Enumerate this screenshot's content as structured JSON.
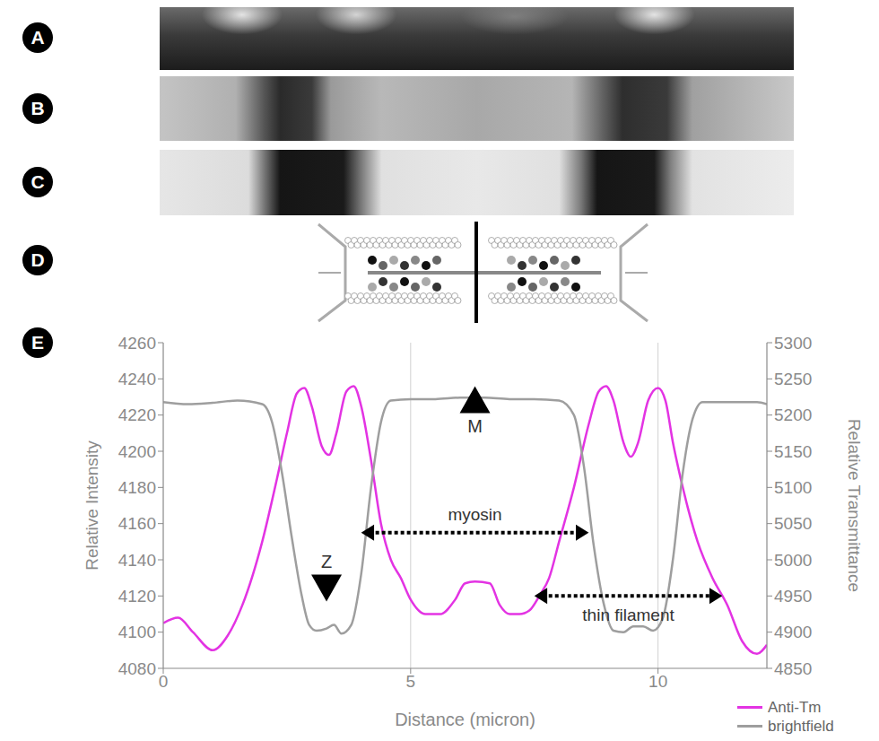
{
  "panel_labels": [
    "A",
    "B",
    "C",
    "D",
    "E"
  ],
  "chart_data": {
    "type": "line",
    "x_label": "Distance (micron)",
    "y_label": "Relative Intensity",
    "y2_label": "Relative Transmittance",
    "xlim": [
      0,
      12.2
    ],
    "xticks": [
      0,
      5,
      10
    ],
    "ylim": [
      4080,
      4260
    ],
    "yticks": [
      4080,
      4100,
      4120,
      4140,
      4160,
      4180,
      4200,
      4220,
      4240,
      4260
    ],
    "y2lim": [
      4850,
      5300
    ],
    "y2ticks": [
      4850,
      4900,
      4950,
      5000,
      5050,
      5100,
      5150,
      5200,
      5250,
      5300
    ],
    "grid": "x",
    "legend": "lower right",
    "series": [
      {
        "name": "Anti-Tm",
        "color": "#e333e3",
        "axis": "y",
        "x": [
          0,
          0.3,
          0.6,
          1.0,
          1.3,
          1.6,
          2.0,
          2.3,
          2.5,
          2.7,
          2.85,
          3.0,
          3.2,
          3.35,
          3.5,
          3.7,
          3.85,
          4.0,
          4.2,
          4.4,
          4.6,
          4.8,
          5.0,
          5.3,
          5.6,
          5.9,
          6.1,
          6.3,
          6.6,
          6.8,
          7.0,
          7.2,
          7.4,
          7.6,
          7.8,
          8.0,
          8.3,
          8.6,
          8.8,
          8.95,
          9.1,
          9.3,
          9.45,
          9.6,
          9.8,
          10.0,
          10.15,
          10.3,
          10.5,
          10.8,
          11.1,
          11.4,
          11.7,
          12.0,
          12.2
        ],
        "values": [
          4105,
          4108,
          4100,
          4090,
          4098,
          4115,
          4150,
          4185,
          4210,
          4232,
          4235,
          4225,
          4203,
          4198,
          4210,
          4233,
          4236,
          4225,
          4195,
          4160,
          4140,
          4130,
          4118,
          4110,
          4110,
          4118,
          4127,
          4128,
          4127,
          4115,
          4110,
          4110,
          4112,
          4120,
          4130,
          4150,
          4180,
          4215,
          4233,
          4236,
          4228,
          4205,
          4197,
          4205,
          4228,
          4235,
          4228,
          4205,
          4180,
          4150,
          4130,
          4115,
          4095,
          4088,
          4093
        ]
      },
      {
        "name": "brightfield",
        "color": "#9e9e9e",
        "axis": "y2",
        "x": [
          0,
          0.5,
          1.0,
          1.5,
          2.0,
          2.2,
          2.4,
          2.6,
          2.8,
          2.95,
          3.1,
          3.3,
          3.45,
          3.6,
          3.8,
          4.0,
          4.2,
          4.4,
          4.6,
          5.0,
          5.5,
          6.0,
          6.5,
          7.0,
          7.5,
          8.0,
          8.3,
          8.5,
          8.7,
          8.9,
          9.1,
          9.3,
          9.5,
          9.7,
          9.9,
          10.1,
          10.3,
          10.5,
          10.7,
          10.9,
          11.5,
          12.0,
          12.2
        ],
        "values": [
          5218,
          5215,
          5217,
          5220,
          5215,
          5190,
          5120,
          5030,
          4950,
          4910,
          4902,
          4905,
          4910,
          4898,
          4910,
          4980,
          5100,
          5190,
          5220,
          5222,
          5222,
          5224,
          5224,
          5222,
          5222,
          5220,
          5200,
          5130,
          5020,
          4940,
          4902,
          4900,
          4908,
          4908,
          4902,
          4920,
          5000,
          5120,
          5195,
          5218,
          5218,
          5218,
          5215
        ]
      }
    ],
    "annotations": [
      {
        "text": "M",
        "x": 6.3,
        "y": 5240,
        "axis": "y2",
        "marker": "arrow_up"
      },
      {
        "text": "Z",
        "x": 3.3,
        "y": 4117,
        "axis": "y",
        "marker": "arrow_down"
      },
      {
        "text": "myosin",
        "x": [
          4.0,
          8.6
        ],
        "y": 4155,
        "axis": "y",
        "marker": "double_arrow"
      },
      {
        "text": "thin filament",
        "x": [
          7.5,
          11.3
        ],
        "y": 4120,
        "axis": "y",
        "marker": "double_arrow"
      }
    ]
  }
}
